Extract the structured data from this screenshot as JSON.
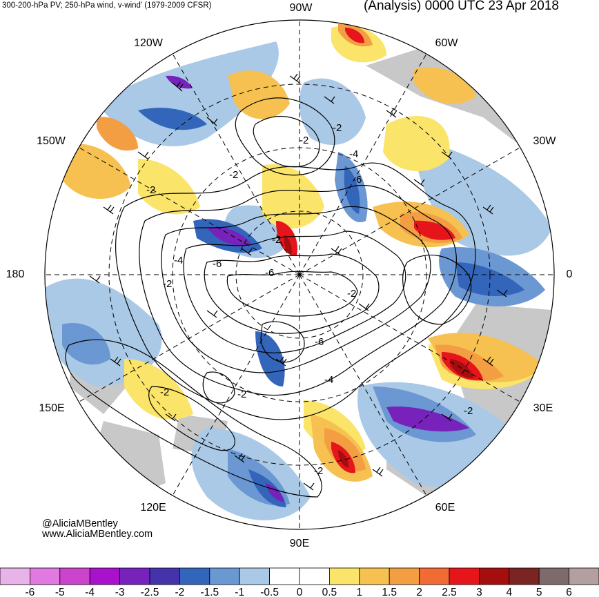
{
  "header": {
    "left_title": "300-200-hPa PV; 250-hPa wind, v-wind’ (1979-2009 CFSR)",
    "right_title": "(Analysis) 0000 UTC 23 Apr 2018"
  },
  "longitude_labels": {
    "top": "90W",
    "top_right": "60W",
    "right_upper": "30W",
    "right": "0",
    "right_lower": "30E",
    "bottom_right": "60E",
    "bottom": "90E",
    "bottom_left": "120E",
    "left_lower": "150E",
    "left": "180",
    "left_upper": "150W",
    "top_left": "120W"
  },
  "credits": {
    "handle": "@AliciaMBentley",
    "website": "www.AliciaMBentley.com"
  },
  "contour_labels": [
    "-2",
    "-2",
    "-2",
    "-2",
    "-2",
    "-2",
    "-2",
    "-2",
    "-2",
    "-2",
    "-2",
    "-4",
    "-4",
    "-4",
    "-6",
    "-6",
    "-6",
    "-6"
  ],
  "colorbar": {
    "colors": [
      "#e8b3e8",
      "#e07ae0",
      "#cc44cc",
      "#aa11cc",
      "#7722bb",
      "#4433aa",
      "#3366bb",
      "#6b97d2",
      "#a9c9e6",
      "#ffffff",
      "#ffffff",
      "#fbe46a",
      "#f6c150",
      "#f39e42",
      "#f26a34",
      "#e5151b",
      "#a50e0e",
      "#7a2424",
      "#7d6a6a",
      "#b39f9f"
    ],
    "tick_labels": [
      "-6",
      "-5",
      "-4",
      "-3",
      "-2.5",
      "-2",
      "-1.5",
      "-1",
      "-0.5",
      "0",
      "0.5",
      "1",
      "1.5",
      "2",
      "2.5",
      "3",
      "4",
      "5",
      "6"
    ]
  }
}
